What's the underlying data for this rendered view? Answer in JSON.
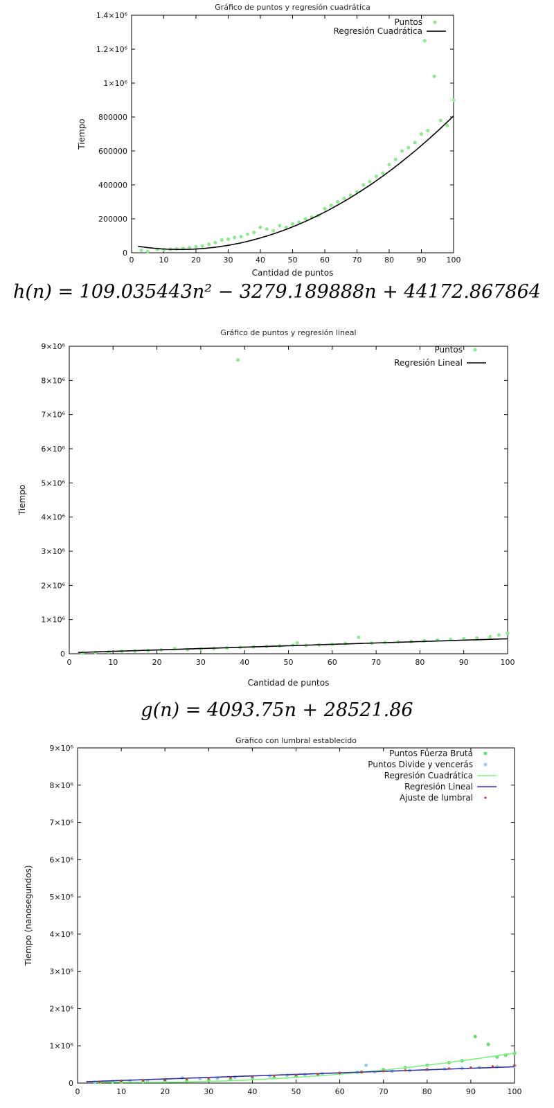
{
  "equations": {
    "quadratic": "h(n) = 109.035443n² − 3279.189888n + 44172.867864",
    "linear": "g(n) = 4093.75n + 28521.86"
  },
  "chart_data": [
    {
      "type": "scatter",
      "title": "Gráfico de puntos y regresión cuadrática",
      "xlabel": "Cantidad de puntos",
      "ylabel": "Tiempo",
      "xlim": [
        0,
        100
      ],
      "ylim": [
        0,
        1400000
      ],
      "xticks": [
        "0",
        "10",
        "20",
        "30",
        "40",
        "50",
        "60",
        "70",
        "80",
        "90",
        "100"
      ],
      "yticks": [
        "0",
        "200000",
        "400000",
        "600000",
        "800000",
        "1×10⁶",
        "1.2×10⁶",
        "1.4×10⁶"
      ],
      "legend_position": "top-right",
      "series": [
        {
          "name": "Puntos",
          "kind": "points",
          "color": "#90e890",
          "x": [
            3,
            5,
            8,
            10,
            12,
            14,
            16,
            18,
            20,
            22,
            24,
            26,
            28,
            30,
            32,
            34,
            36,
            38,
            40,
            42,
            44,
            46,
            48,
            50,
            52,
            54,
            56,
            58,
            60,
            62,
            64,
            66,
            68,
            70,
            72,
            74,
            76,
            78,
            80,
            82,
            84,
            86,
            88,
            90,
            91,
            92,
            94,
            96,
            98,
            100
          ],
          "y": [
            15000,
            8000,
            20000,
            18000,
            20000,
            22000,
            25000,
            30000,
            35000,
            40000,
            50000,
            60000,
            75000,
            80000,
            90000,
            95000,
            110000,
            120000,
            150000,
            140000,
            130000,
            160000,
            150000,
            170000,
            180000,
            200000,
            210000,
            220000,
            260000,
            280000,
            300000,
            320000,
            340000,
            360000,
            400000,
            420000,
            450000,
            470000,
            520000,
            550000,
            600000,
            620000,
            650000,
            700000,
            1250000,
            720000,
            1040000,
            780000,
            750000,
            900000
          ]
        },
        {
          "name": "Regresión Cuadrática",
          "kind": "line",
          "color": "#000000",
          "fit": "109.035443*x^2 - 3279.189888*x + 44172.867864",
          "x_range": [
            2,
            100
          ]
        }
      ]
    },
    {
      "type": "scatter",
      "title": "Gráfico de puntos y regresión lineal",
      "xlabel": "Cantidad de puntos",
      "ylabel": "Tiempo",
      "xlim": [
        0,
        100
      ],
      "ylim": [
        0,
        9000000
      ],
      "xticks": [
        "0",
        "10",
        "20",
        "30",
        "40",
        "50",
        "60",
        "70",
        "80",
        "90",
        "100"
      ],
      "yticks": [
        "0",
        "1×10⁶",
        "2×10⁶",
        "3×10⁶",
        "4×10⁶",
        "5×10⁶",
        "6×10⁶",
        "7×10⁶",
        "8×10⁶",
        "9×10⁶"
      ],
      "legend_position": "top-right",
      "series": [
        {
          "name": "Puntos",
          "kind": "points",
          "color": "#90e890",
          "x": [
            3,
            6,
            9,
            12,
            15,
            18,
            21,
            24,
            27,
            30,
            33,
            36,
            38.5,
            39,
            42,
            45,
            48,
            51,
            52,
            54,
            57,
            60,
            63,
            66,
            69,
            72,
            75,
            78,
            81,
            84,
            87,
            90,
            93,
            96,
            98,
            100
          ],
          "y": [
            20000,
            40000,
            50000,
            70000,
            80000,
            90000,
            110000,
            150000,
            120000,
            140000,
            150000,
            170000,
            8600000,
            190000,
            200000,
            210000,
            230000,
            250000,
            320000,
            240000,
            260000,
            280000,
            300000,
            480000,
            310000,
            330000,
            350000,
            360000,
            380000,
            400000,
            420000,
            440000,
            460000,
            500000,
            550000,
            600000
          ]
        },
        {
          "name": "Regresión Lineal",
          "kind": "line",
          "color": "#000000",
          "fit": "4093.75*x + 28521.86",
          "x_range": [
            2,
            100
          ]
        }
      ]
    },
    {
      "type": "scatter",
      "title": "Gráfico con lumbral establecido",
      "xlabel": "",
      "ylabel": "Tiempo (nanosegundos)",
      "xlim": [
        0,
        100
      ],
      "ylim": [
        0,
        9000000
      ],
      "xticks": [
        "0",
        "10",
        "20",
        "30",
        "40",
        "50",
        "60",
        "70",
        "80",
        "90",
        "100"
      ],
      "yticks": [
        "0",
        "1×10⁶",
        "2×10⁶",
        "3×10⁶",
        "4×10⁶",
        "5×10⁶",
        "6×10⁶",
        "7×10⁶",
        "8×10⁶",
        "9×10⁶"
      ],
      "legend_position": "top-right",
      "series": [
        {
          "name": "Puntos Fuerza Bruta",
          "kind": "points",
          "color": "#6fdc6f",
          "x": [
            5,
            10,
            15,
            20,
            25,
            30,
            35,
            40,
            45,
            50,
            55,
            60,
            65,
            70,
            75,
            80,
            85,
            88,
            91,
            94,
            96,
            98,
            100
          ],
          "y": [
            20000,
            30000,
            40000,
            50000,
            60000,
            80000,
            100000,
            130000,
            150000,
            180000,
            220000,
            260000,
            300000,
            360000,
            420000,
            480000,
            550000,
            600000,
            1250000,
            1040000,
            700000,
            750000,
            800000
          ]
        },
        {
          "name": "Puntos Divide y vencerás",
          "kind": "points",
          "color": "#9ccbe8",
          "x": [
            4,
            8,
            12,
            16,
            20,
            24,
            28,
            32,
            36,
            40,
            44,
            48,
            52,
            56,
            60,
            64,
            66,
            68,
            72,
            76,
            80,
            84,
            88,
            92,
            96,
            100
          ],
          "y": [
            20000,
            40000,
            60000,
            70000,
            90000,
            140000,
            120000,
            130000,
            160000,
            170000,
            190000,
            210000,
            230000,
            250000,
            270000,
            290000,
            480000,
            300000,
            320000,
            340000,
            360000,
            380000,
            400000,
            420000,
            440000,
            460000
          ]
        },
        {
          "name": "Regresión Cuadrática",
          "kind": "line",
          "color": "#80ee80",
          "fit": "109.035443*x^2 - 3279.189888*x + 44172.867864",
          "x_range": [
            2,
            100
          ]
        },
        {
          "name": "Regresión Lineal",
          "kind": "line",
          "color": "#2f2f9f",
          "fit": "4093.75*x + 28521.86",
          "x_range": [
            2,
            100
          ]
        },
        {
          "name": "Ajuste de lumbral",
          "kind": "points",
          "color": "#c0392b",
          "x": [
            5,
            10,
            15,
            20,
            25,
            30,
            35,
            40,
            45,
            50,
            55,
            60,
            65,
            70,
            75,
            80,
            85,
            90,
            95,
            100
          ],
          "y": [
            30000,
            50000,
            70000,
            80000,
            110000,
            130000,
            150000,
            170000,
            200000,
            220000,
            240000,
            270000,
            290000,
            320000,
            340000,
            370000,
            390000,
            420000,
            450000,
            480000
          ]
        }
      ]
    }
  ]
}
